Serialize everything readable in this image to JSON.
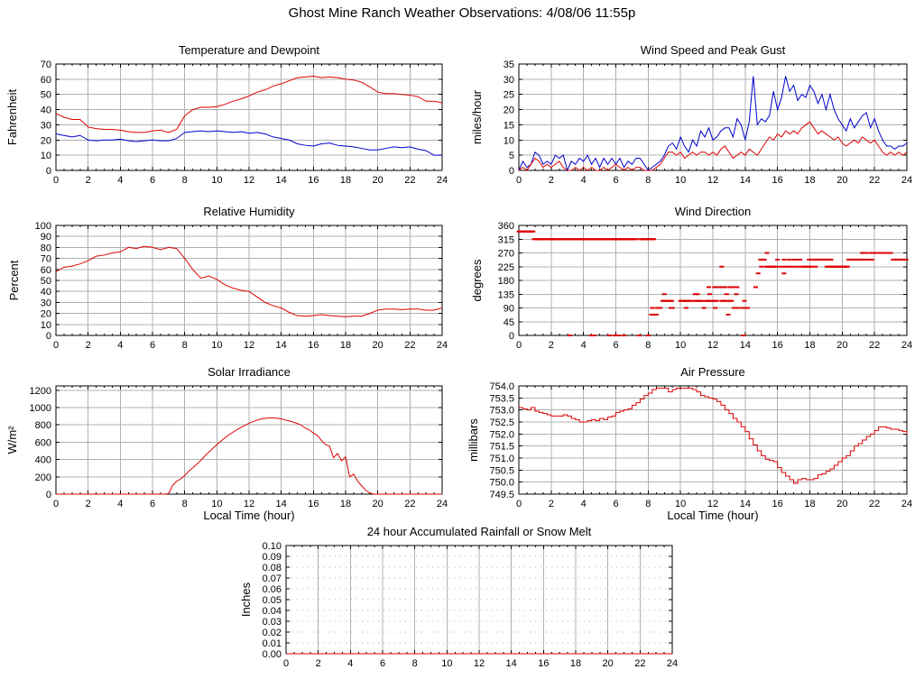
{
  "page": {
    "title": "Ghost Mine Ranch Weather Observations: 4/08/06 11:55p"
  },
  "colors": {
    "red": "#dd0000",
    "blue": "#0000cc",
    "grid": "#b0b0b0",
    "border": "#000000"
  },
  "chart_data": [
    {
      "id": "temperature-and-dewpoint",
      "type": "line",
      "title": "Temperature and Dewpoint",
      "ylabel": "Fahrenheit",
      "xlabel": "",
      "xlim": [
        0,
        24
      ],
      "xtick_step": 2,
      "minor_xtick_step": 0.5,
      "ylim": [
        0,
        70
      ],
      "ytick_step": 10,
      "ytick_decimals": 0,
      "grid": true,
      "series": [
        {
          "name": "temperature",
          "color": "#dd0000",
          "x_start": 0,
          "x_step": 0.5,
          "y": [
            37.5,
            35,
            33.5,
            33.5,
            28.5,
            27.5,
            27,
            27,
            26.5,
            25.5,
            25,
            25,
            26,
            26.5,
            25,
            27,
            36,
            40,
            41.5,
            41.5,
            42,
            43.5,
            45.5,
            47,
            49,
            51.5,
            53,
            55.5,
            57,
            59,
            61,
            61.5,
            62,
            61,
            61.5,
            61,
            60,
            59.5,
            58,
            55,
            51.5,
            50.5,
            50.5,
            50,
            49.5,
            48.5,
            45.5,
            45.5,
            44.5
          ]
        },
        {
          "name": "dewpoint",
          "color": "#0000cc",
          "x_start": 0,
          "x_step": 0.5,
          "y": [
            24,
            23,
            22,
            23,
            20,
            19.5,
            20,
            20,
            20.5,
            19.5,
            19,
            19.5,
            20,
            19.5,
            19.5,
            21,
            25,
            25.5,
            26,
            25.5,
            26,
            25.5,
            25,
            25.5,
            24.5,
            25,
            24,
            22,
            21,
            20,
            17.5,
            16.5,
            16,
            17.5,
            18,
            16.5,
            16,
            15.5,
            14.5,
            13.5,
            13.5,
            14.5,
            15.5,
            15,
            15.5,
            14,
            13,
            10,
            10
          ]
        }
      ]
    },
    {
      "id": "wind-speed-and-peak-gust",
      "type": "line",
      "title": "Wind Speed and Peak Gust",
      "ylabel": "miles/hour",
      "xlabel": "",
      "xlim": [
        0,
        24
      ],
      "xtick_step": 2,
      "minor_xtick_step": 0.5,
      "ylim": [
        0,
        35
      ],
      "ytick_step": 5,
      "ytick_decimals": 0,
      "grid": true,
      "series": [
        {
          "name": "peak-gust",
          "color": "#0000cc",
          "x_start": 0,
          "x_step": 0.25,
          "y": [
            0,
            3,
            1,
            2,
            6,
            5,
            2,
            3,
            2,
            5,
            4,
            5,
            0,
            3,
            2,
            4,
            3,
            5,
            2,
            4,
            1,
            4,
            2,
            4,
            2,
            4,
            1,
            3,
            2,
            4,
            4,
            2,
            0,
            1,
            2,
            3,
            5,
            8,
            9,
            7,
            11,
            8,
            6,
            10,
            8,
            13,
            11,
            14,
            10,
            11,
            13,
            14,
            14,
            11,
            17,
            15,
            10,
            16,
            31,
            15,
            17,
            16,
            18,
            26,
            20,
            24,
            31,
            26,
            28,
            23,
            25,
            24,
            28,
            26,
            22,
            25,
            20,
            25,
            20,
            17,
            15,
            13,
            17,
            14,
            16,
            18,
            19,
            14,
            17,
            13,
            10,
            8,
            8,
            7,
            8,
            8,
            9
          ]
        },
        {
          "name": "wind-speed",
          "color": "#dd0000",
          "x_start": 0,
          "x_step": 0.25,
          "y": [
            0,
            1,
            0,
            2,
            4,
            3,
            1,
            2,
            1,
            2,
            3,
            1,
            0,
            0,
            1,
            0,
            1,
            0,
            1,
            0,
            0,
            1,
            0,
            1,
            2,
            1,
            0,
            1,
            0,
            1,
            1,
            0,
            0,
            0,
            1,
            2,
            4,
            6,
            6,
            5,
            6,
            4,
            5,
            6,
            5,
            6,
            6,
            5,
            6,
            5,
            7,
            8,
            6,
            4,
            5,
            6,
            5,
            7,
            6,
            5,
            7,
            9,
            11,
            10,
            12,
            11,
            13,
            12,
            13,
            12,
            14,
            15,
            16,
            14,
            12,
            13,
            12,
            11,
            10,
            11,
            9,
            8,
            9,
            10,
            9,
            11,
            10,
            9,
            10,
            8,
            6,
            5,
            6,
            5,
            6,
            5,
            6
          ]
        }
      ]
    },
    {
      "id": "relative-humidity",
      "type": "line",
      "title": "Relative Humidity",
      "ylabel": "Percent",
      "xlabel": "",
      "xlim": [
        0,
        24
      ],
      "xtick_step": 2,
      "minor_xtick_step": 0.5,
      "ylim": [
        0,
        100
      ],
      "ytick_step": 10,
      "ytick_decimals": 0,
      "grid": true,
      "series": [
        {
          "name": "humidity",
          "color": "#dd0000",
          "x_start": 0,
          "x_step": 0.5,
          "y": [
            58,
            62,
            63,
            65,
            68,
            72,
            73,
            75,
            76,
            80,
            79,
            81,
            80,
            78,
            80,
            79,
            70,
            60,
            52,
            54,
            51,
            46,
            43,
            41,
            40,
            35,
            30,
            27,
            25,
            21,
            18,
            17.5,
            18,
            19,
            18,
            17.5,
            17,
            17.5,
            17.5,
            20,
            23,
            24,
            24,
            23.5,
            24,
            24,
            23,
            23,
            25
          ]
        }
      ]
    },
    {
      "id": "wind-direction",
      "type": "scatter",
      "title": "Wind Direction",
      "ylabel": "degrees",
      "xlabel": "",
      "xlim": [
        0,
        24
      ],
      "xtick_step": 2,
      "minor_xtick_step": 0.5,
      "ylim": [
        0,
        360
      ],
      "ytick_step": 45,
      "ytick_decimals": 0,
      "grid": true,
      "marker_color": "#dd0000",
      "dash_segments": [
        {
          "deg": 340,
          "from": 0,
          "to": 0.95
        },
        {
          "deg": 315,
          "from": 0.95,
          "to": 3.0
        },
        {
          "deg": 315,
          "from": 3.1,
          "to": 7.3
        },
        {
          "deg": 315,
          "from": 7.55,
          "to": 8.35
        },
        {
          "deg": 113,
          "from": 8.9,
          "to": 9.5
        },
        {
          "deg": 113,
          "from": 10.0,
          "to": 10.7
        },
        {
          "deg": 113,
          "from": 10.9,
          "to": 11.35
        },
        {
          "deg": 113,
          "from": 11.55,
          "to": 11.9
        },
        {
          "deg": 113,
          "from": 12.0,
          "to": 12.3
        },
        {
          "deg": 113,
          "from": 12.55,
          "to": 12.8
        },
        {
          "deg": 113,
          "from": 13.0,
          "to": 13.2
        },
        {
          "deg": 225,
          "from": 15.3,
          "to": 15.9
        },
        {
          "deg": 225,
          "from": 17.55,
          "to": 18.15
        },
        {
          "deg": 225,
          "from": 19.05,
          "to": 20.35
        },
        {
          "deg": 248,
          "from": 14.95,
          "to": 15.2
        },
        {
          "deg": 248,
          "from": 17.95,
          "to": 19.35
        },
        {
          "deg": 248,
          "from": 20.4,
          "to": 21.5
        },
        {
          "deg": 248,
          "from": 23.15,
          "to": 24.0
        },
        {
          "deg": 270,
          "from": 21.25,
          "to": 21.55
        },
        {
          "deg": 270,
          "from": 21.8,
          "to": 23.0
        }
      ],
      "dash_points": [
        {
          "deg": 0,
          "hours": [
            3.15,
            4.5,
            4.65,
            5.6,
            5.95,
            6.15,
            6.5,
            7.45,
            8.0,
            13.9
          ]
        },
        {
          "deg": 68,
          "hours": [
            8.2,
            8.35,
            8.5,
            12.95
          ]
        },
        {
          "deg": 90,
          "hours": [
            8.25,
            8.55,
            8.75,
            9.4,
            9.5,
            10.35,
            11.45,
            12.15,
            13.3,
            13.55,
            13.85,
            14.0,
            14.15
          ]
        },
        {
          "deg": 113,
          "hours": [
            13.95
          ]
        },
        {
          "deg": 135,
          "hours": [
            9.0,
            10.9,
            11.05,
            11.8,
            12.85,
            13.45
          ]
        },
        {
          "deg": 158,
          "hours": [
            11.75,
            12.1,
            12.25,
            12.45,
            12.6,
            12.75,
            13.05,
            13.2,
            13.35,
            13.5,
            14.65
          ]
        },
        {
          "deg": 203,
          "hours": [
            14.8,
            16.4
          ]
        },
        {
          "deg": 225,
          "hours": [
            12.55,
            15.0,
            16.1,
            16.3,
            16.5,
            16.7,
            16.9,
            17.1,
            17.3,
            18.35
          ]
        },
        {
          "deg": 248,
          "hours": [
            16.0,
            16.4,
            16.7,
            17.0,
            17.2,
            17.4,
            21.7,
            21.85
          ]
        },
        {
          "deg": 270,
          "hours": [
            15.35,
            21.5
          ]
        }
      ]
    },
    {
      "id": "solar-irradiance",
      "type": "line",
      "title": "Solar Irradiance",
      "ylabel": "W/m²",
      "xlabel": "Local Time (hour)",
      "xlim": [
        0,
        24
      ],
      "xtick_step": 2,
      "minor_xtick_step": 0.5,
      "ylim": [
        0,
        1250
      ],
      "ytick_step": 200,
      "ytick_decimals": 0,
      "grid": true,
      "series": [
        {
          "name": "irradiance",
          "color": "#dd0000",
          "x_start": 0,
          "x_step": 0.25,
          "y": [
            0,
            0,
            0,
            0,
            0,
            0,
            0,
            0,
            0,
            0,
            0,
            0,
            0,
            0,
            0,
            0,
            0,
            0,
            0,
            0,
            0,
            0,
            0,
            0,
            0,
            0,
            0,
            0,
            5,
            100,
            150,
            175,
            215,
            265,
            305,
            345,
            390,
            440,
            485,
            530,
            570,
            612,
            650,
            685,
            715,
            745,
            772,
            795,
            818,
            838,
            855,
            868,
            876,
            880,
            880,
            876,
            868,
            856,
            845,
            832,
            815,
            798,
            762,
            742,
            705,
            678,
            620,
            572,
            555,
            420,
            470,
            385,
            430,
            200,
            230,
            150,
            95,
            45,
            12,
            0,
            0,
            0,
            0,
            0,
            0,
            0,
            0,
            0,
            0,
            0,
            0,
            0,
            0,
            0,
            0,
            0,
            0
          ]
        }
      ]
    },
    {
      "id": "air-pressure",
      "type": "line",
      "title": "Air Pressure",
      "ylabel": "millibars",
      "xlabel": "Local Time (hour)",
      "xlim": [
        0,
        24
      ],
      "xtick_step": 2,
      "minor_xtick_step": 0.5,
      "ylim": [
        749.5,
        754.0
      ],
      "ytick_step": 0.5,
      "ytick_decimals": 1,
      "grid": true,
      "series": [
        {
          "name": "pressure",
          "color": "#dd0000",
          "step": true,
          "x_start": 0,
          "x_step": 0.25,
          "y": [
            753.1,
            753.05,
            753.0,
            753.1,
            752.95,
            752.9,
            752.85,
            752.8,
            752.75,
            752.75,
            752.75,
            752.8,
            752.75,
            752.65,
            752.6,
            752.5,
            752.5,
            752.55,
            752.6,
            752.55,
            752.65,
            752.6,
            752.7,
            752.75,
            752.9,
            752.95,
            753.0,
            753.05,
            753.2,
            753.3,
            753.45,
            753.6,
            753.7,
            753.85,
            753.9,
            753.9,
            753.9,
            753.75,
            753.85,
            753.9,
            753.9,
            753.9,
            753.9,
            753.85,
            753.75,
            753.6,
            753.55,
            753.5,
            753.45,
            753.35,
            753.2,
            753.0,
            752.85,
            752.65,
            752.5,
            752.3,
            752.1,
            751.8,
            751.55,
            751.3,
            751.1,
            750.95,
            750.9,
            750.85,
            750.6,
            750.4,
            750.25,
            750.1,
            749.95,
            750.1,
            750.15,
            750.1,
            750.1,
            750.15,
            750.3,
            750.35,
            750.45,
            750.55,
            750.7,
            750.85,
            751.0,
            751.1,
            751.3,
            751.5,
            751.6,
            751.75,
            751.9,
            752.0,
            752.15,
            752.3,
            752.3,
            752.25,
            752.2,
            752.2,
            752.15,
            752.1,
            752.0
          ]
        }
      ]
    },
    {
      "id": "rainfall",
      "type": "line",
      "title": "24 hour Accumulated Rainfall or Snow Melt",
      "ylabel": "Inches",
      "xlabel": "",
      "xlim": [
        0,
        24
      ],
      "xtick_step": 2,
      "minor_xtick_step": 0.5,
      "ylim": [
        0,
        0.1
      ],
      "ytick_step": 0.01,
      "ytick_decimals": 2,
      "grid": true,
      "ygrid_dotted": true,
      "series": [
        {
          "name": "rainfall",
          "color": "#dd0000",
          "x_start": 0,
          "x_step": 24,
          "y": [
            0,
            0
          ]
        }
      ]
    }
  ]
}
